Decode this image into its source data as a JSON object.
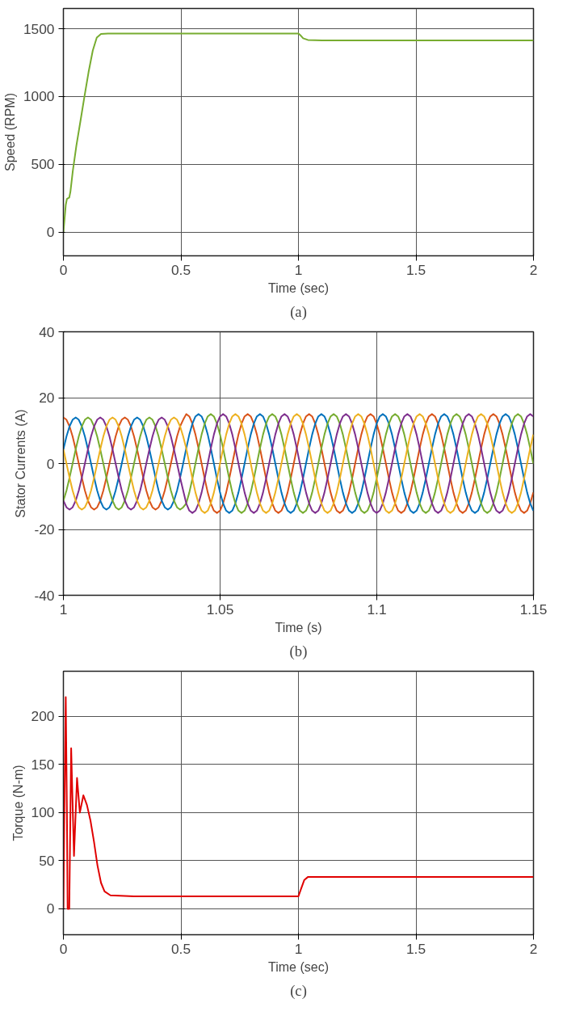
{
  "chart_data": [
    {
      "type": "line",
      "xlabel": "Time (sec)",
      "ylabel": "Speed (RPM)",
      "annotations": [
        "(a)"
      ],
      "xlim": [
        0,
        2
      ],
      "ylim": [
        -175,
        1650
      ],
      "xticks": [
        0,
        0.5,
        1,
        1.5,
        2
      ],
      "yticks": [
        0,
        500,
        1000,
        1500
      ],
      "grid": true,
      "x": [
        0,
        0.005,
        0.01,
        0.015,
        0.025,
        0.03,
        0.04,
        0.055,
        0.073,
        0.09,
        0.107,
        0.125,
        0.142,
        0.16,
        0.19,
        1.0,
        1.01,
        1.02,
        1.04,
        1.1,
        2.0
      ],
      "series": [
        {
          "color": "#77ac30",
          "values": [
            0,
            100,
            200,
            245,
            255,
            300,
            450,
            635,
            824,
            1005,
            1180,
            1340,
            1435,
            1462,
            1465,
            1465,
            1450,
            1430,
            1418,
            1415,
            1415
          ]
        }
      ]
    },
    {
      "type": "line",
      "xlabel": "Time (s)",
      "ylabel": "Stator Currents (A)",
      "annotations": [
        "(b)"
      ],
      "xlim": [
        1,
        1.15
      ],
      "ylim": [
        -40,
        40
      ],
      "xticks": [
        1,
        1.05,
        1.1,
        1.15
      ],
      "yticks": [
        -40,
        -20,
        0,
        20,
        40
      ],
      "grid": true,
      "x": [
        1,
        1.00098,
        1.00196,
        1.00294,
        1.00392,
        1.0049,
        1.00588,
        1.00686,
        1.00784,
        1.00882,
        1.0098,
        1.01078,
        1.01176,
        1.01274,
        1.01372,
        1.0147,
        1.01568,
        1.01666,
        1.01764,
        1.01862,
        1.0196,
        1.02058,
        1.02156,
        1.02254,
        1.02352,
        1.0245,
        1.02548,
        1.02646,
        1.02744,
        1.02842,
        1.0294,
        1.03038,
        1.03136,
        1.03234,
        1.03332,
        1.0343,
        1.03528,
        1.03626,
        1.03724,
        1.03822,
        1.0392,
        1.04018,
        1.04116,
        1.04214,
        1.04312,
        1.0441,
        1.04508,
        1.04606,
        1.04704,
        1.04802,
        1.049,
        1.04998,
        1.05096,
        1.05194,
        1.05292,
        1.0539,
        1.05488,
        1.05586,
        1.05684,
        1.05782,
        1.0588,
        1.05978,
        1.06076,
        1.06174,
        1.06272,
        1.0637,
        1.06468,
        1.06566,
        1.06664,
        1.06762,
        1.0686,
        1.06958,
        1.07056,
        1.07154,
        1.07252,
        1.0735,
        1.07448,
        1.07546,
        1.07644,
        1.07742,
        1.0784,
        1.07938,
        1.08036,
        1.08134,
        1.08232,
        1.0833,
        1.08428,
        1.08526,
        1.08624,
        1.08722,
        1.0882,
        1.08918,
        1.09016,
        1.09114,
        1.09212,
        1.0931,
        1.09408,
        1.09506,
        1.09604,
        1.09702,
        1.098,
        1.09898,
        1.09996,
        1.10094,
        1.10192,
        1.1029,
        1.10388,
        1.10486,
        1.10584,
        1.10682,
        1.1078,
        1.10878,
        1.10976,
        1.11074,
        1.11172,
        1.1127,
        1.11368,
        1.11466,
        1.11564,
        1.11662,
        1.1176,
        1.11858,
        1.11956,
        1.12054,
        1.12152,
        1.1225,
        1.12348,
        1.12446,
        1.12544,
        1.12642,
        1.1274,
        1.12838,
        1.12936,
        1.13034,
        1.13132,
        1.1323,
        1.13328,
        1.13426,
        1.13524,
        1.13622,
        1.1372,
        1.13818,
        1.13916,
        1.14014,
        1.14112,
        1.1421,
        1.14308,
        1.14406,
        1.14504,
        1.14602,
        1.147,
        1.14798,
        1.14896,
        1.14994
      ],
      "series": [
        {
          "color": "#d95319",
          "values": [
            14,
            13.3,
            11.3,
            8.2,
            4.3,
            0,
            -4.3,
            -8.2,
            -11.3,
            -13.3,
            -14,
            -13.3,
            -11.3,
            -8.2,
            -4.3,
            0,
            4.3,
            8.2,
            11.3,
            13.3,
            14,
            13.3,
            11.3,
            8.2,
            4.3,
            0,
            -4.3,
            -8.2,
            -11.3,
            -13.3,
            -14,
            -13.3,
            -11.3,
            -8.2,
            -4.3,
            0,
            4.3,
            8.2,
            11.3,
            13.3,
            15,
            14.3,
            12.1,
            8.8,
            4.6,
            0,
            -4.6,
            -8.8,
            -12.1,
            -14.3,
            -15,
            -14.3,
            -12.1,
            -8.8,
            -4.6,
            0,
            4.6,
            8.8,
            12.1,
            14.3,
            15,
            14.3,
            12.1,
            8.8,
            4.6,
            0,
            -4.6,
            -8.8,
            -12.1,
            -14.3,
            -15,
            -14.3,
            -12.1,
            -8.8,
            -4.6,
            0,
            4.6,
            8.8,
            12.1,
            14.3,
            15,
            14.3,
            12.1,
            8.8,
            4.6,
            0,
            -4.6,
            -8.8,
            -12.1,
            -14.3,
            -15,
            -14.3,
            -12.1,
            -8.8,
            -4.6,
            0,
            4.6,
            8.8,
            12.1,
            14.3,
            15,
            14.3,
            12.1,
            8.8,
            4.6,
            0,
            -4.6,
            -8.8,
            -12.1,
            -14.3,
            -15,
            -14.3,
            -12.1,
            -8.8,
            -4.6,
            0,
            4.6,
            8.8,
            12.1,
            14.3,
            15,
            14.3,
            12.1,
            8.8,
            4.6,
            0,
            -4.6,
            -8.8,
            -12.1,
            -14.3,
            -15,
            -14.3,
            -12.1,
            -8.8,
            -4.6,
            0,
            4.6,
            8.8,
            12.1,
            14.3,
            15,
            14.3,
            12.1,
            8.8,
            4.6,
            0,
            -4.6,
            -8.8,
            -12.1,
            -14.3,
            -15,
            -14.3,
            -12.1,
            -8.8
          ]
        },
        {
          "color": "#0072bd",
          "values": [
            4.3,
            8.2,
            11.3,
            13.3,
            14,
            13.3,
            11.3,
            8.2,
            4.3,
            0,
            -4.3,
            -8.2,
            -11.3,
            -13.3,
            -14,
            -13.3,
            -11.3,
            -8.2,
            -4.3,
            0,
            4.3,
            8.2,
            11.3,
            13.3,
            14,
            13.3,
            11.3,
            8.2,
            4.3,
            0,
            -4.3,
            -8.2,
            -11.3,
            -13.3,
            -14,
            -13.3,
            -11.3,
            -8.2,
            -4.3,
            0,
            4.6,
            8.8,
            12.1,
            14.3,
            15,
            14.3,
            12.1,
            8.8,
            4.6,
            0,
            -4.6,
            -8.8,
            -12.1,
            -14.3,
            -15,
            -14.3,
            -12.1,
            -8.8,
            -4.6,
            0,
            4.6,
            8.8,
            12.1,
            14.3,
            15,
            14.3,
            12.1,
            8.8,
            4.6,
            0,
            -4.6,
            -8.8,
            -12.1,
            -14.3,
            -15,
            -14.3,
            -12.1,
            -8.8,
            -4.6,
            0,
            4.6,
            8.8,
            12.1,
            14.3,
            15,
            14.3,
            12.1,
            8.8,
            4.6,
            0,
            -4.6,
            -8.8,
            -12.1,
            -14.3,
            -15,
            -14.3,
            -12.1,
            -8.8,
            -4.6,
            0,
            4.6,
            8.8,
            12.1,
            14.3,
            15,
            14.3,
            12.1,
            8.8,
            4.6,
            0,
            -4.6,
            -8.8,
            -12.1,
            -14.3,
            -15,
            -14.3,
            -12.1,
            -8.8,
            -4.6,
            0,
            4.6,
            8.8,
            12.1,
            14.3,
            15,
            14.3,
            12.1,
            8.8,
            4.6,
            0,
            -4.6,
            -8.8,
            -12.1,
            -14.3,
            -15,
            -14.3,
            -12.1,
            -8.8,
            -4.6,
            0,
            4.6,
            8.8,
            12.1,
            14.3,
            15,
            14.3,
            12.1,
            8.8,
            4.6,
            0,
            -4.6,
            -8.8,
            -12.1,
            -14.3
          ]
        },
        {
          "color": "#77ac30",
          "values": [
            -11.3,
            -8.2,
            -4.3,
            0,
            4.3,
            8.2,
            11.3,
            13.3,
            14,
            13.3,
            11.3,
            8.2,
            4.3,
            0,
            -4.3,
            -8.2,
            -11.3,
            -13.3,
            -14,
            -13.3,
            -11.3,
            -8.2,
            -4.3,
            0,
            4.3,
            8.2,
            11.3,
            13.3,
            14,
            13.3,
            11.3,
            8.2,
            4.3,
            0,
            -4.3,
            -8.2,
            -11.3,
            -13.3,
            -14,
            -13.3,
            -12.1,
            -8.8,
            -4.6,
            0,
            4.6,
            8.8,
            12.1,
            14.3,
            15,
            14.3,
            12.1,
            8.8,
            4.6,
            0,
            -4.6,
            -8.8,
            -12.1,
            -14.3,
            -15,
            -14.3,
            -12.1,
            -8.8,
            -4.6,
            0,
            4.6,
            8.8,
            12.1,
            14.3,
            15,
            14.3,
            12.1,
            8.8,
            4.6,
            0,
            -4.6,
            -8.8,
            -12.1,
            -14.3,
            -15,
            -14.3,
            -12.1,
            -8.8,
            -4.6,
            0,
            4.6,
            8.8,
            12.1,
            14.3,
            15,
            14.3,
            12.1,
            8.8,
            4.6,
            0,
            -4.6,
            -8.8,
            -12.1,
            -14.3,
            -15,
            -14.3,
            -12.1,
            -8.8,
            -4.6,
            0,
            4.6,
            8.8,
            12.1,
            14.3,
            15,
            14.3,
            12.1,
            8.8,
            4.6,
            0,
            -4.6,
            -8.8,
            -12.1,
            -14.3,
            -15,
            -14.3,
            -12.1,
            -8.8,
            -4.6,
            0,
            4.6,
            8.8,
            12.1,
            14.3,
            15,
            14.3,
            12.1,
            8.8,
            4.6,
            0,
            -4.6,
            -8.8,
            -12.1,
            -14.3,
            -15,
            -14.3,
            -12.1,
            -8.8,
            -4.6,
            0,
            4.6,
            8.8,
            12.1,
            14.3,
            15,
            14.3,
            12.1,
            8.8,
            4.6,
            0
          ]
        },
        {
          "color": "#7e2f8e",
          "values": [
            -11.3,
            -13.3,
            -14,
            -13.3,
            -11.3,
            -8.2,
            -4.3,
            0,
            4.3,
            8.2,
            11.3,
            13.3,
            14,
            13.3,
            11.3,
            8.2,
            4.3,
            0,
            -4.3,
            -8.2,
            -11.3,
            -13.3,
            -14,
            -13.3,
            -11.3,
            -8.2,
            -4.3,
            0,
            4.3,
            8.2,
            11.3,
            13.3,
            14,
            13.3,
            11.3,
            8.2,
            4.3,
            0,
            -4.3,
            -8.2,
            -12.1,
            -14.3,
            -15,
            -14.3,
            -12.1,
            -8.8,
            -4.6,
            0,
            4.6,
            8.8,
            12.1,
            14.3,
            15,
            14.3,
            12.1,
            8.8,
            4.6,
            0,
            -4.6,
            -8.8,
            -12.1,
            -14.3,
            -15,
            -14.3,
            -12.1,
            -8.8,
            -4.6,
            0,
            4.6,
            8.8,
            12.1,
            14.3,
            15,
            14.3,
            12.1,
            8.8,
            4.6,
            0,
            -4.6,
            -8.8,
            -12.1,
            -14.3,
            -15,
            -14.3,
            -12.1,
            -8.8,
            -4.6,
            0,
            4.6,
            8.8,
            12.1,
            14.3,
            15,
            14.3,
            12.1,
            8.8,
            4.6,
            0,
            -4.6,
            -8.8,
            -12.1,
            -14.3,
            -15,
            -14.3,
            -12.1,
            -8.8,
            -4.6,
            0,
            4.6,
            8.8,
            12.1,
            14.3,
            15,
            14.3,
            12.1,
            8.8,
            4.6,
            0,
            -4.6,
            -8.8,
            -12.1,
            -14.3,
            -15,
            -14.3,
            -12.1,
            -8.8,
            -4.6,
            0,
            4.6,
            8.8,
            12.1,
            14.3,
            15,
            14.3,
            12.1,
            8.8,
            4.6,
            0,
            -4.6,
            -8.8,
            -12.1,
            -14.3,
            -15,
            -14.3,
            -12.1,
            -8.8,
            -4.6,
            0,
            4.6,
            8.8,
            12.1,
            14.3,
            15,
            14.3
          ]
        },
        {
          "color": "#edb120",
          "values": [
            4.3,
            0,
            -4.3,
            -8.2,
            -11.3,
            -13.3,
            -14,
            -13.3,
            -11.3,
            -8.2,
            -4.3,
            0,
            4.3,
            8.2,
            11.3,
            13.3,
            14,
            13.3,
            11.3,
            8.2,
            4.3,
            0,
            -4.3,
            -8.2,
            -11.3,
            -13.3,
            -14,
            -13.3,
            -11.3,
            -8.2,
            -4.3,
            0,
            4.3,
            8.2,
            11.3,
            13.3,
            14,
            13.3,
            11.3,
            8.2,
            4.6,
            0,
            -4.6,
            -8.8,
            -12.1,
            -14.3,
            -15,
            -14.3,
            -12.1,
            -8.8,
            -4.6,
            0,
            4.6,
            8.8,
            12.1,
            14.3,
            15,
            14.3,
            12.1,
            8.8,
            4.6,
            0,
            -4.6,
            -8.8,
            -12.1,
            -14.3,
            -15,
            -14.3,
            -12.1,
            -8.8,
            -4.6,
            0,
            4.6,
            8.8,
            12.1,
            14.3,
            15,
            14.3,
            12.1,
            8.8,
            4.6,
            0,
            -4.6,
            -8.8,
            -12.1,
            -14.3,
            -15,
            -14.3,
            -12.1,
            -8.8,
            -4.6,
            0,
            4.6,
            8.8,
            12.1,
            14.3,
            15,
            14.3,
            12.1,
            8.8,
            4.6,
            0,
            -4.6,
            -8.8,
            -12.1,
            -14.3,
            -15,
            -14.3,
            -12.1,
            -8.8,
            -4.6,
            0,
            4.6,
            8.8,
            12.1,
            14.3,
            15,
            14.3,
            12.1,
            8.8,
            4.6,
            0,
            -4.6,
            -8.8,
            -12.1,
            -14.3,
            -15,
            -14.3,
            -12.1,
            -8.8,
            -4.6,
            0,
            4.6,
            8.8,
            12.1,
            14.3,
            15,
            14.3,
            12.1,
            8.8,
            4.6,
            0,
            -4.6,
            -8.8,
            -12.1,
            -14.3,
            -15,
            -14.3,
            -12.1,
            -8.8,
            -4.6,
            0,
            4.6,
            8.8
          ]
        }
      ]
    },
    {
      "type": "line",
      "xlabel": "Time (sec)",
      "ylabel": "Torque (N-m)",
      "annotations": [
        "(c)"
      ],
      "xlim": [
        0,
        2
      ],
      "ylim": [
        -27,
        247
      ],
      "xticks": [
        0,
        0.5,
        1,
        1.5,
        2
      ],
      "yticks": [
        0,
        50,
        100,
        150,
        200
      ],
      "grid": true,
      "x": [
        0,
        0.005,
        0.01,
        0.015,
        0.018,
        0.025,
        0.033,
        0.045,
        0.058,
        0.07,
        0.085,
        0.1,
        0.115,
        0.13,
        0.145,
        0.16,
        0.175,
        0.2,
        0.3,
        1.0,
        1.01,
        1.025,
        1.04,
        2.0
      ],
      "series": [
        {
          "color": "#e00000",
          "values": [
            0,
            120,
            220,
            100,
            0,
            0,
            167,
            55,
            136,
            100,
            118,
            108,
            92,
            70,
            45,
            27,
            18,
            14,
            13,
            13,
            20,
            30,
            33,
            33
          ]
        }
      ]
    }
  ]
}
